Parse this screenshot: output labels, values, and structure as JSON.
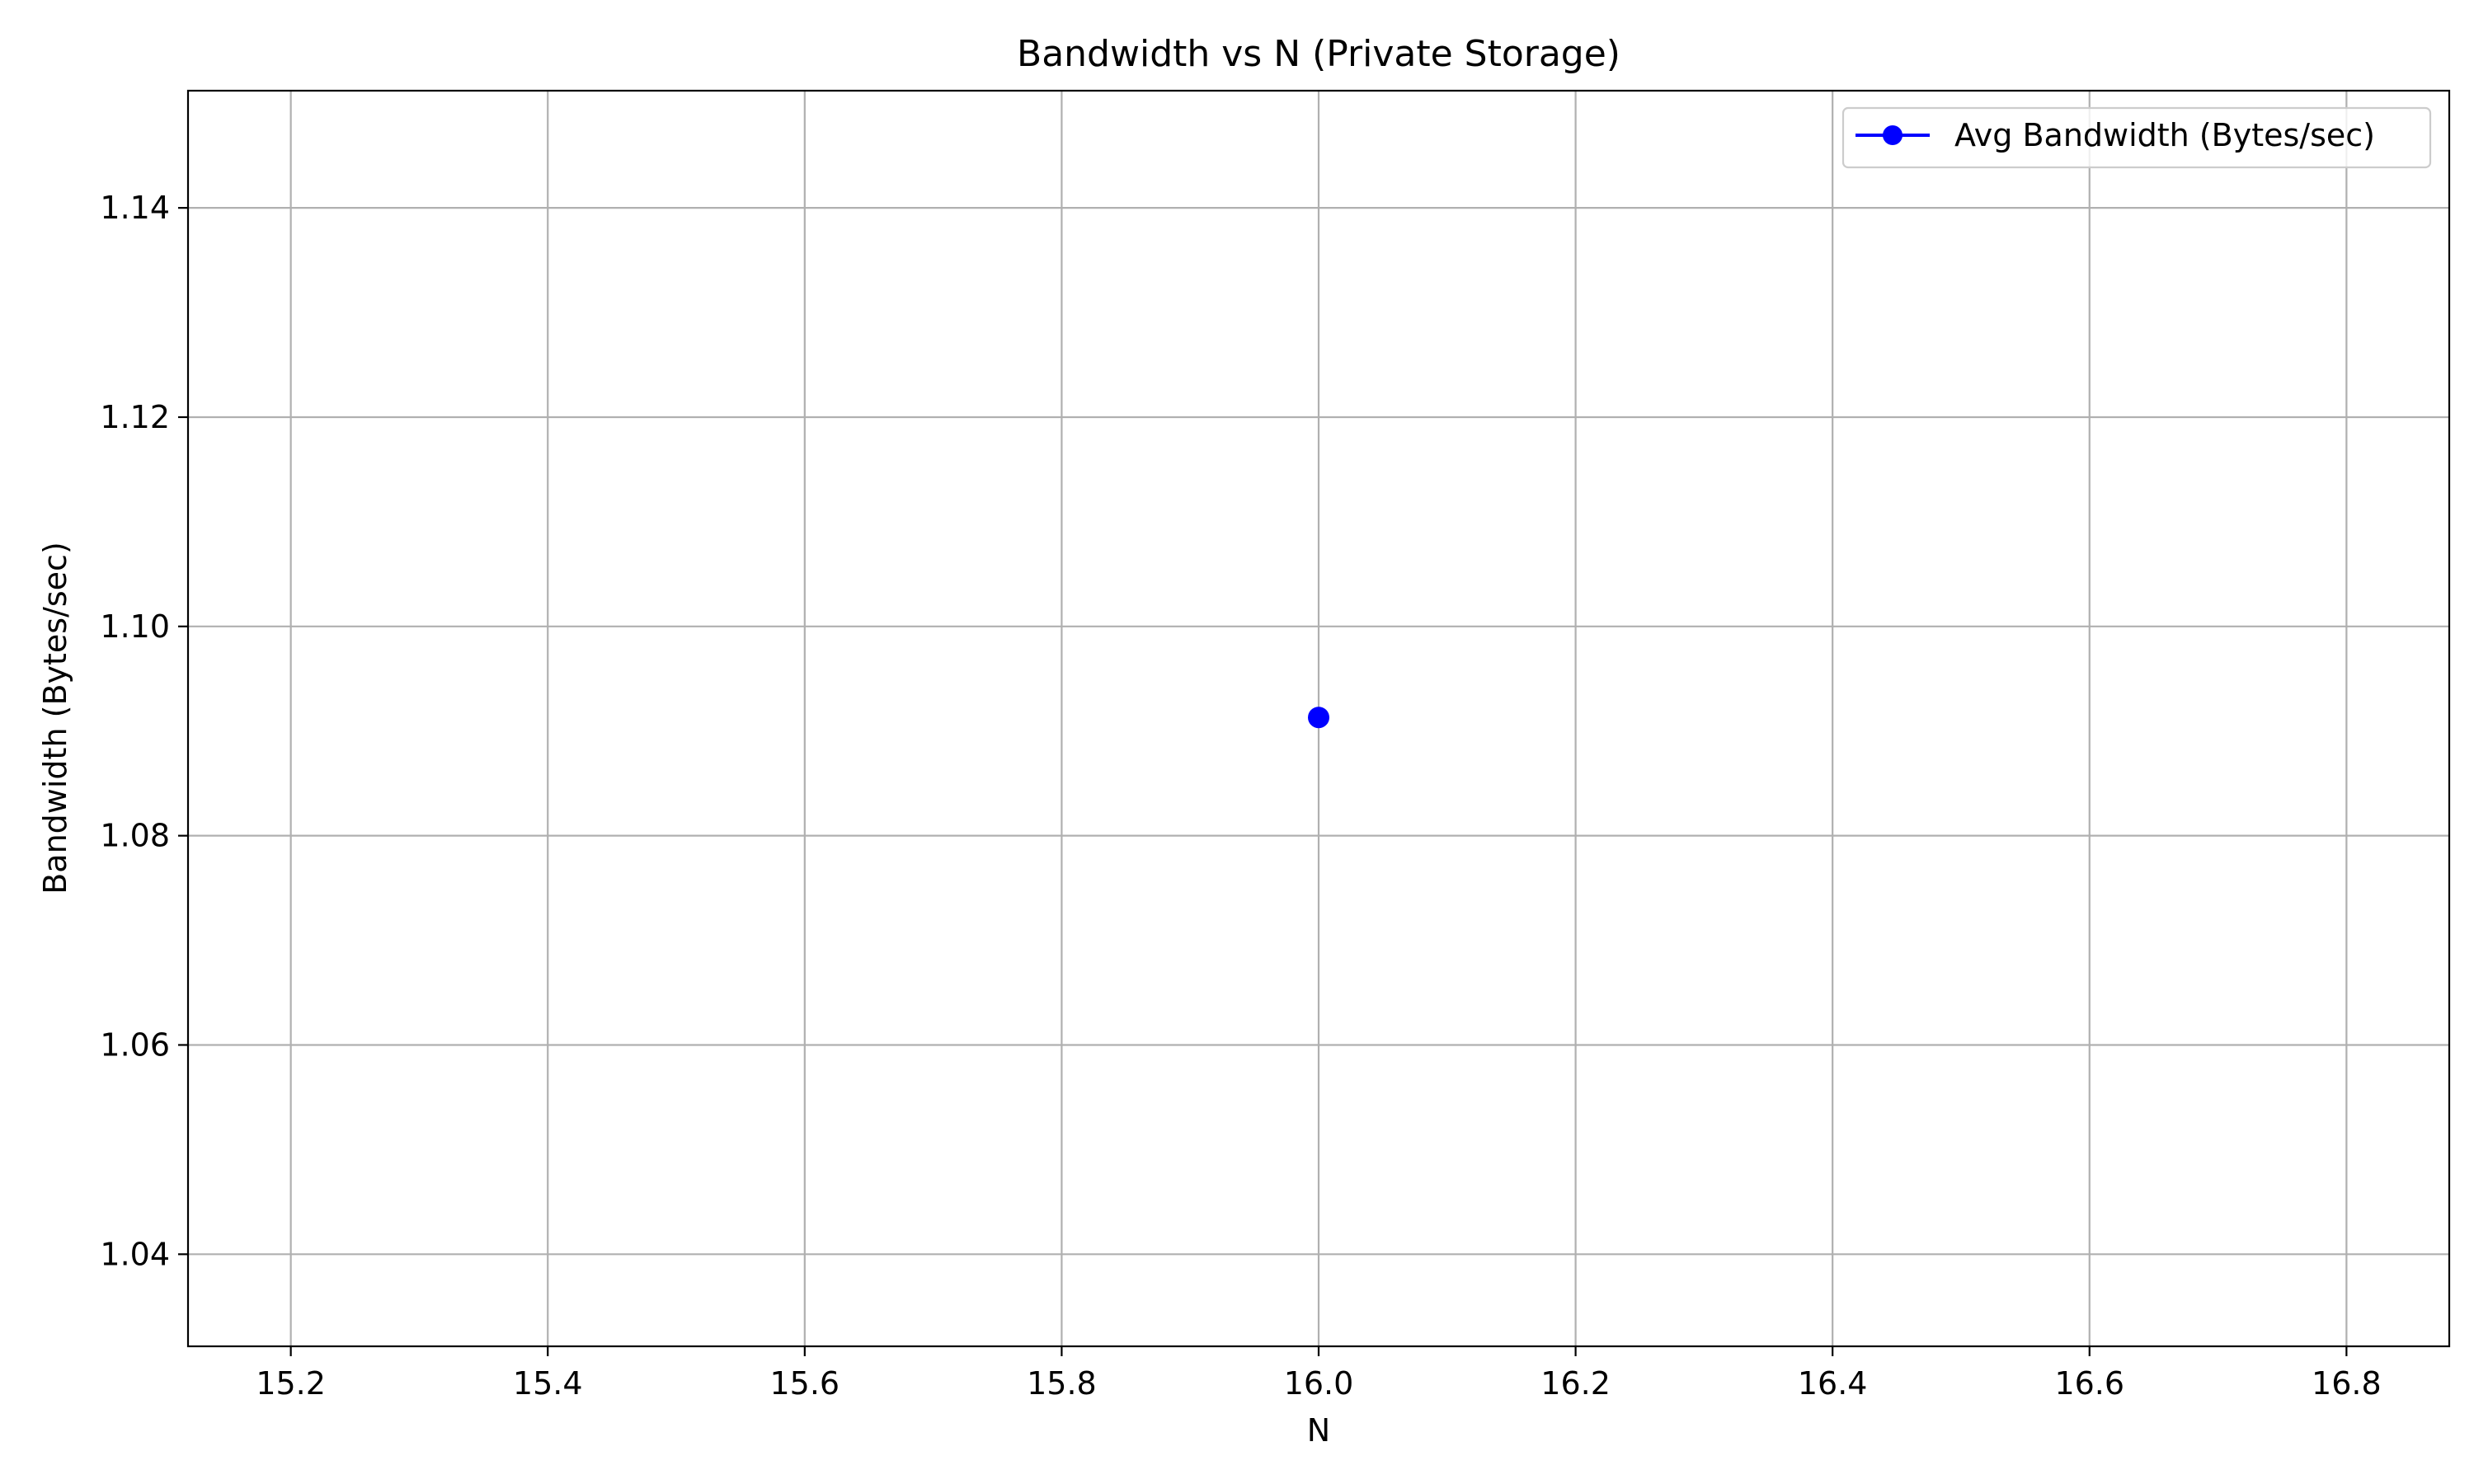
{
  "chart_data": {
    "type": "line",
    "title": "Bandwidth vs N (Private Storage)",
    "xlabel": "N",
    "ylabel": "Bandwidth (Bytes/sec)",
    "xlim": [
      15.12,
      16.88
    ],
    "ylim": [
      1.0312,
      1.1512
    ],
    "x_ticks": [
      15.2,
      15.4,
      15.6,
      15.8,
      16.0,
      16.2,
      16.4,
      16.6,
      16.8
    ],
    "x_tick_labels": [
      "15.2",
      "15.4",
      "15.6",
      "15.8",
      "16.0",
      "16.2",
      "16.4",
      "16.6",
      "16.8"
    ],
    "y_ticks": [
      1.04,
      1.06,
      1.08,
      1.1,
      1.12,
      1.14
    ],
    "y_tick_labels": [
      "1.04",
      "1.06",
      "1.08",
      "1.10",
      "1.12",
      "1.14"
    ],
    "grid": true,
    "legend_position": "top-right",
    "series": [
      {
        "name": "Avg Bandwidth (Bytes/sec)",
        "color": "#0000ff",
        "marker": "circle",
        "x": [
          16.0
        ],
        "y": [
          1.0913
        ]
      }
    ]
  }
}
